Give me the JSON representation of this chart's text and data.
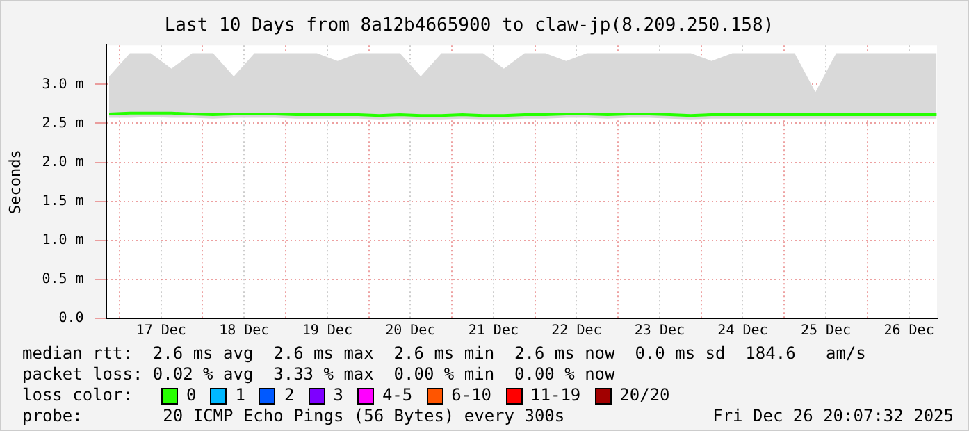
{
  "chart_data": {
    "type": "line",
    "title": "Last 10 Days from 8a12b4665900 to claw-jp(8.209.250.158)",
    "ylabel": "Seconds",
    "legend_title": "loss color:",
    "legend": "bottom",
    "grid": true,
    "marker": "none",
    "line_style": "solid",
    "x": [
      "2025-12-16T21:00",
      "2025-12-17T03:00",
      "2025-12-17T09:00",
      "2025-12-17T15:00",
      "2025-12-17T21:00",
      "2025-12-18T03:00",
      "2025-12-18T09:00",
      "2025-12-18T15:00",
      "2025-12-18T21:00",
      "2025-12-19T03:00",
      "2025-12-19T09:00",
      "2025-12-19T15:00",
      "2025-12-19T21:00",
      "2025-12-20T03:00",
      "2025-12-20T09:00",
      "2025-12-20T15:00",
      "2025-12-20T21:00",
      "2025-12-21T03:00",
      "2025-12-21T09:00",
      "2025-12-21T15:00",
      "2025-12-21T21:00",
      "2025-12-22T03:00",
      "2025-12-22T09:00",
      "2025-12-22T15:00",
      "2025-12-22T21:00",
      "2025-12-23T03:00",
      "2025-12-23T09:00",
      "2025-12-23T15:00",
      "2025-12-23T21:00",
      "2025-12-24T03:00",
      "2025-12-24T09:00",
      "2025-12-24T15:00",
      "2025-12-24T21:00",
      "2025-12-25T03:00",
      "2025-12-25T09:00",
      "2025-12-25T15:00",
      "2025-12-25T21:00",
      "2025-12-26T03:00",
      "2025-12-26T09:00",
      "2025-12-26T15:00",
      "2025-12-26T20:00"
    ],
    "xlim": [
      "2025-12-16T20:07",
      "2025-12-26T20:07"
    ],
    "xticks": [
      {
        "value": "2025-12-17T00:00",
        "label": null
      },
      {
        "value": "2025-12-17T12:00",
        "label": "17 Dec"
      },
      {
        "value": "2025-12-18T00:00",
        "label": null
      },
      {
        "value": "2025-12-18T12:00",
        "label": "18 Dec"
      },
      {
        "value": "2025-12-19T00:00",
        "label": null
      },
      {
        "value": "2025-12-19T12:00",
        "label": "19 Dec"
      },
      {
        "value": "2025-12-20T00:00",
        "label": null
      },
      {
        "value": "2025-12-20T12:00",
        "label": "20 Dec"
      },
      {
        "value": "2025-12-21T00:00",
        "label": null
      },
      {
        "value": "2025-12-21T12:00",
        "label": "21 Dec"
      },
      {
        "value": "2025-12-22T00:00",
        "label": null
      },
      {
        "value": "2025-12-22T12:00",
        "label": "22 Dec"
      },
      {
        "value": "2025-12-23T00:00",
        "label": null
      },
      {
        "value": "2025-12-23T12:00",
        "label": "23 Dec"
      },
      {
        "value": "2025-12-24T00:00",
        "label": null
      },
      {
        "value": "2025-12-24T12:00",
        "label": "24 Dec"
      },
      {
        "value": "2025-12-25T00:00",
        "label": null
      },
      {
        "value": "2025-12-25T12:00",
        "label": "25 Dec"
      },
      {
        "value": "2025-12-26T00:00",
        "label": null
      },
      {
        "value": "2025-12-26T12:00",
        "label": "26 Dec"
      }
    ],
    "ylim": [
      0,
      3.5
    ],
    "yticks": [
      {
        "value": 0,
        "label": "0.0"
      },
      {
        "value": 0.5,
        "label": "0.5 m"
      },
      {
        "value": 1,
        "label": "1.0 m"
      },
      {
        "value": 1.5,
        "label": "1.5 m"
      },
      {
        "value": 2,
        "label": "2.0 m"
      },
      {
        "value": 2.5,
        "label": "2.5 m"
      },
      {
        "value": 3,
        "label": "3.0 m"
      }
    ],
    "series": [
      {
        "name": "0",
        "color": "#26ff00",
        "values": [
          2.62,
          2.63,
          2.63,
          2.63,
          2.62,
          2.61,
          2.62,
          2.62,
          2.62,
          2.61,
          2.61,
          2.61,
          2.61,
          2.6,
          2.61,
          2.6,
          2.6,
          2.61,
          2.6,
          2.6,
          2.61,
          2.61,
          2.62,
          2.62,
          2.61,
          2.62,
          2.62,
          2.61,
          2.6,
          2.61,
          2.61,
          2.61,
          2.61,
          2.61,
          2.61,
          2.61,
          2.61,
          2.61,
          2.61,
          2.61,
          2.61
        ],
        "lower": [
          2.57,
          2.57,
          2.58,
          2.57,
          2.57,
          2.56,
          2.57,
          2.57,
          2.57,
          2.56,
          2.56,
          2.56,
          2.56,
          2.55,
          2.56,
          2.55,
          2.55,
          2.56,
          2.55,
          2.55,
          2.56,
          2.56,
          2.57,
          2.57,
          2.56,
          2.57,
          2.57,
          2.56,
          2.55,
          2.56,
          2.56,
          2.56,
          2.56,
          2.56,
          2.56,
          2.56,
          2.56,
          2.56,
          2.56,
          2.56,
          2.56
        ],
        "upper": [
          3.1,
          3.4,
          3.4,
          3.2,
          3.4,
          3.4,
          3.1,
          3.4,
          3.4,
          3.4,
          3.4,
          3.3,
          3.4,
          3.4,
          3.4,
          3.1,
          3.4,
          3.4,
          3.4,
          3.2,
          3.4,
          3.4,
          3.3,
          3.4,
          3.4,
          3.4,
          3.4,
          3.4,
          3.4,
          3.3,
          3.4,
          3.4,
          3.4,
          3.4,
          2.9,
          3.4,
          3.4,
          3.4,
          3.4,
          3.4,
          3.4
        ]
      },
      {
        "name": "1",
        "color": "#00b8ff",
        "values": [
          null,
          null,
          null,
          null,
          null,
          null,
          null,
          null,
          null,
          null,
          null,
          null,
          null,
          null,
          null,
          null,
          null,
          null,
          null,
          null,
          null,
          null,
          null,
          null,
          null,
          null,
          null,
          null,
          null,
          null,
          null,
          null,
          null,
          null,
          null,
          null,
          null,
          null,
          null,
          null,
          null
        ]
      },
      {
        "name": "2",
        "color": "#0059ff",
        "values": [
          null,
          null,
          null,
          null,
          null,
          null,
          null,
          null,
          null,
          null,
          null,
          null,
          null,
          null,
          null,
          null,
          null,
          null,
          null,
          null,
          null,
          null,
          null,
          null,
          null,
          null,
          null,
          null,
          null,
          null,
          null,
          null,
          null,
          null,
          null,
          null,
          null,
          null,
          null,
          null,
          null
        ]
      },
      {
        "name": "3",
        "color": "#7e00ff",
        "values": [
          null,
          null,
          null,
          null,
          null,
          null,
          null,
          null,
          null,
          null,
          null,
          null,
          null,
          null,
          null,
          null,
          null,
          null,
          null,
          null,
          null,
          null,
          null,
          null,
          null,
          null,
          null,
          null,
          null,
          null,
          null,
          null,
          null,
          null,
          null,
          null,
          null,
          null,
          null,
          null,
          null
        ]
      },
      {
        "name": "4-5",
        "color": "#ff00ff",
        "values": [
          null,
          null,
          null,
          null,
          null,
          null,
          null,
          null,
          null,
          null,
          null,
          null,
          null,
          null,
          null,
          null,
          null,
          null,
          null,
          null,
          null,
          null,
          null,
          null,
          null,
          null,
          null,
          null,
          null,
          null,
          null,
          null,
          null,
          null,
          null,
          null,
          null,
          null,
          null,
          null,
          null
        ]
      },
      {
        "name": "6-10",
        "color": "#ff5500",
        "values": [
          null,
          null,
          null,
          null,
          null,
          null,
          null,
          null,
          null,
          null,
          null,
          null,
          null,
          null,
          null,
          null,
          null,
          null,
          null,
          null,
          null,
          null,
          null,
          null,
          null,
          null,
          null,
          null,
          null,
          null,
          null,
          null,
          null,
          null,
          null,
          null,
          null,
          null,
          null,
          null,
          null
        ]
      },
      {
        "name": "11-19",
        "color": "#ff0000",
        "values": [
          null,
          null,
          null,
          null,
          null,
          null,
          null,
          null,
          null,
          null,
          null,
          null,
          null,
          null,
          null,
          null,
          null,
          null,
          null,
          null,
          null,
          null,
          null,
          null,
          null,
          null,
          null,
          null,
          null,
          null,
          null,
          null,
          null,
          null,
          null,
          null,
          null,
          null,
          null,
          null,
          null
        ]
      },
      {
        "name": "20/20",
        "color": "#a10000",
        "values": [
          null,
          null,
          null,
          null,
          null,
          null,
          null,
          null,
          null,
          null,
          null,
          null,
          null,
          null,
          null,
          null,
          null,
          null,
          null,
          null,
          null,
          null,
          null,
          null,
          null,
          null,
          null,
          null,
          null,
          null,
          null,
          null,
          null,
          null,
          null,
          null,
          null,
          null,
          null,
          null,
          null
        ]
      }
    ],
    "annotations": [
      "median rtt:  2.6 ms avg  2.6 ms max  2.6 ms min  2.6 ms now  0.0 ms sd  184.6   am/s",
      "packet loss: 0.02 % avg  3.33 % max  0.00 % min  0.00 % now",
      "probe:        20 ICMP Echo Pings (56 Bytes) every 300s",
      "Fri Dec 26 20:07:32 2025"
    ]
  }
}
